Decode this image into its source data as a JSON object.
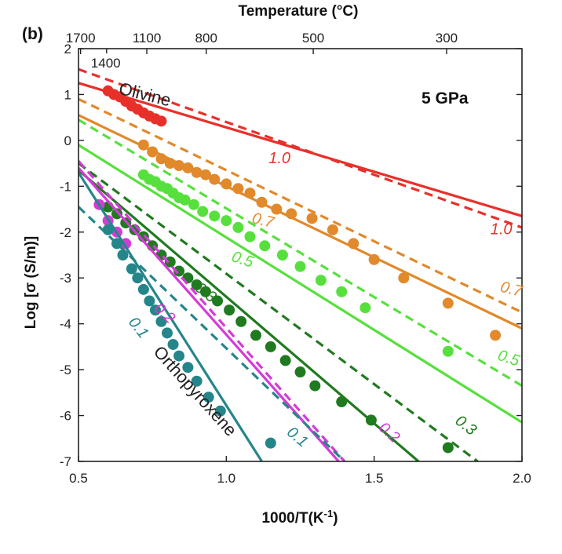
{
  "chart_data": {
    "type": "line",
    "panel_label": "(b)",
    "pressure_label": "5 GPa",
    "top_axis": {
      "title": "Temperature (°C)",
      "ticks": [
        {
          "label": "1700",
          "x": 0.507
        },
        {
          "label": "1100",
          "x": 0.731
        },
        {
          "label": "800",
          "x": 0.932
        },
        {
          "label": "500",
          "x": 1.294
        },
        {
          "label": "300",
          "x": 1.745
        }
      ],
      "extra_label": {
        "text": "1400",
        "x": 0.595
      }
    },
    "xlabel": "1000/T(K",
    "xlabel_sup": "-1",
    "xlabel_end": ")",
    "ylabel": "Log [σ (S/m)]",
    "xlim": [
      0.5,
      2.0
    ],
    "ylim": [
      -7,
      2
    ],
    "xticks": [
      0.5,
      1.0,
      1.5,
      2.0
    ],
    "xtick_labels": [
      "0.5",
      "1.0",
      "1.5",
      "2.0"
    ],
    "yticks": [
      2,
      1,
      0,
      -1,
      -2,
      -3,
      -4,
      -5,
      -6,
      -7
    ],
    "ytick_labels": [
      "2",
      "1",
      "0",
      "-1",
      "-2",
      "-3",
      "-4",
      "-5",
      "-6",
      "-7"
    ],
    "phase_labels": [
      {
        "text": "Olivine",
        "x": 0.72,
        "y": 0.88,
        "angle": 14
      },
      {
        "text": "Orthopyroxene",
        "x": 0.88,
        "y": -5.55,
        "angle": 48
      }
    ],
    "series": [
      {
        "name": "1.0",
        "color": "#e8302a",
        "solid": [
          [
            0.5,
            1.25
          ],
          [
            2.0,
            -1.65
          ]
        ],
        "dashed": [
          [
            0.5,
            1.55
          ],
          [
            2.0,
            -1.9
          ]
        ],
        "points": [
          [
            0.6,
            1.08
          ],
          [
            0.62,
            1.0
          ],
          [
            0.64,
            0.95
          ],
          [
            0.66,
            0.85
          ],
          [
            0.68,
            0.75
          ],
          [
            0.7,
            0.68
          ],
          [
            0.72,
            0.6
          ],
          [
            0.74,
            0.53
          ],
          [
            0.76,
            0.47
          ],
          [
            0.78,
            0.42
          ]
        ],
        "labels": [
          {
            "text": "1.0",
            "x": 1.18,
            "y": -0.5,
            "angle": 0
          },
          {
            "text": "1.0",
            "x": 1.93,
            "y": -2.05,
            "angle": 0
          }
        ]
      },
      {
        "name": "0.7",
        "color": "#e1892b",
        "solid": [
          [
            0.5,
            0.55
          ],
          [
            2.0,
            -4.1
          ]
        ],
        "dashed": [
          [
            0.5,
            0.9
          ],
          [
            2.0,
            -3.75
          ]
        ],
        "points": [
          [
            0.72,
            -0.1
          ],
          [
            0.75,
            -0.25
          ],
          [
            0.78,
            -0.4
          ],
          [
            0.81,
            -0.5
          ],
          [
            0.84,
            -0.55
          ],
          [
            0.87,
            -0.6
          ],
          [
            0.9,
            -0.7
          ],
          [
            0.93,
            -0.75
          ],
          [
            0.96,
            -0.85
          ],
          [
            1.0,
            -0.95
          ],
          [
            1.04,
            -1.05
          ],
          [
            1.08,
            -1.15
          ],
          [
            1.12,
            -1.35
          ],
          [
            1.17,
            -1.5
          ],
          [
            1.22,
            -1.6
          ],
          [
            1.29,
            -1.7
          ],
          [
            1.36,
            -1.95
          ],
          [
            1.43,
            -2.25
          ],
          [
            1.5,
            -2.6
          ],
          [
            1.6,
            -3.0
          ],
          [
            1.75,
            -3.55
          ],
          [
            1.91,
            -4.25
          ]
        ],
        "labels": [
          {
            "text": "0.7",
            "x": 1.12,
            "y": -1.85,
            "angle": 14
          },
          {
            "text": "0.7",
            "x": 1.96,
            "y": -3.35,
            "angle": 14
          }
        ]
      },
      {
        "name": "0.5",
        "color": "#57e03d",
        "solid": [
          [
            0.5,
            -0.1
          ],
          [
            2.0,
            -6.15
          ]
        ],
        "dashed": [
          [
            0.5,
            0.45
          ],
          [
            2.0,
            -5.35
          ]
        ],
        "points": [
          [
            0.72,
            -0.75
          ],
          [
            0.74,
            -0.85
          ],
          [
            0.76,
            -0.9
          ],
          [
            0.78,
            -1.0
          ],
          [
            0.8,
            -1.05
          ],
          [
            0.82,
            -1.15
          ],
          [
            0.84,
            -1.25
          ],
          [
            0.86,
            -1.3
          ],
          [
            0.89,
            -1.4
          ],
          [
            0.92,
            -1.55
          ],
          [
            0.96,
            -1.65
          ],
          [
            1.0,
            -1.75
          ],
          [
            1.04,
            -1.9
          ],
          [
            1.08,
            -2.1
          ],
          [
            1.13,
            -2.3
          ],
          [
            1.19,
            -2.5
          ],
          [
            1.25,
            -2.75
          ],
          [
            1.32,
            -3.05
          ],
          [
            1.39,
            -3.3
          ],
          [
            1.47,
            -3.65
          ],
          [
            1.75,
            -4.6
          ]
        ],
        "labels": [
          {
            "text": "0.5",
            "x": 1.05,
            "y": -2.7,
            "angle": 18
          },
          {
            "text": "0.5",
            "x": 1.95,
            "y": -4.85,
            "angle": 18
          }
        ]
      },
      {
        "name": "0.3",
        "color": "#207a1f",
        "solid": [
          [
            0.5,
            -0.65
          ],
          [
            1.65,
            -7.0
          ]
        ],
        "dashed": [
          [
            0.5,
            -0.5
          ],
          [
            1.85,
            -7.0
          ]
        ],
        "points": [
          [
            0.6,
            -1.45
          ],
          [
            0.63,
            -1.6
          ],
          [
            0.66,
            -1.8
          ],
          [
            0.69,
            -1.95
          ],
          [
            0.72,
            -2.1
          ],
          [
            0.75,
            -2.3
          ],
          [
            0.78,
            -2.5
          ],
          [
            0.81,
            -2.65
          ],
          [
            0.84,
            -2.85
          ],
          [
            0.87,
            -3.0
          ],
          [
            0.9,
            -3.15
          ],
          [
            0.93,
            -3.3
          ],
          [
            0.97,
            -3.5
          ],
          [
            1.01,
            -3.7
          ],
          [
            1.05,
            -3.95
          ],
          [
            1.1,
            -4.25
          ],
          [
            1.15,
            -4.5
          ],
          [
            1.2,
            -4.8
          ],
          [
            1.25,
            -5.05
          ],
          [
            1.3,
            -5.35
          ],
          [
            1.39,
            -5.7
          ],
          [
            1.49,
            -6.1
          ],
          [
            1.75,
            -6.7
          ]
        ],
        "labels": [
          {
            "text": "0.3",
            "x": 0.92,
            "y": -3.4,
            "angle": 38
          },
          {
            "text": "0.3",
            "x": 1.8,
            "y": -6.3,
            "angle": 38
          }
        ]
      },
      {
        "name": "0.2",
        "color": "#d43bd7",
        "solid": [
          [
            0.5,
            -0.6
          ],
          [
            1.38,
            -7.0
          ]
        ],
        "dashed": [
          [
            0.5,
            -0.45
          ],
          [
            1.4,
            -7.0
          ]
        ],
        "points": [
          [
            0.57,
            -1.4
          ],
          [
            0.6,
            -1.75
          ],
          [
            0.63,
            -2.0
          ],
          [
            0.66,
            -2.25
          ]
        ],
        "labels": [
          {
            "text": "0.2",
            "x": 0.78,
            "y": -3.85,
            "angle": 42
          },
          {
            "text": "0.2",
            "x": 1.54,
            "y": -6.45,
            "angle": 42
          }
        ]
      },
      {
        "name": "0.1",
        "color": "#25868a",
        "solid": [
          [
            0.5,
            -0.7
          ],
          [
            1.12,
            -7.0
          ]
        ],
        "dashed": [
          [
            0.5,
            -1.45
          ],
          [
            1.4,
            -7.0
          ]
        ],
        "points": [
          [
            0.6,
            -1.95
          ],
          [
            0.63,
            -2.25
          ],
          [
            0.65,
            -2.5
          ],
          [
            0.68,
            -2.8
          ],
          [
            0.7,
            -3.0
          ],
          [
            0.72,
            -3.25
          ],
          [
            0.74,
            -3.5
          ],
          [
            0.76,
            -3.7
          ],
          [
            0.78,
            -3.95
          ],
          [
            0.8,
            -4.2
          ],
          [
            0.82,
            -4.45
          ],
          [
            0.84,
            -4.7
          ],
          [
            0.87,
            -4.95
          ],
          [
            0.9,
            -5.25
          ],
          [
            0.94,
            -5.6
          ],
          [
            0.98,
            -5.9
          ],
          [
            1.15,
            -6.6
          ]
        ],
        "labels": [
          {
            "text": "0.1",
            "x": 0.69,
            "y": -4.15,
            "angle": 52
          },
          {
            "text": "0.1",
            "x": 1.23,
            "y": -6.55,
            "angle": 40
          }
        ]
      }
    ]
  }
}
